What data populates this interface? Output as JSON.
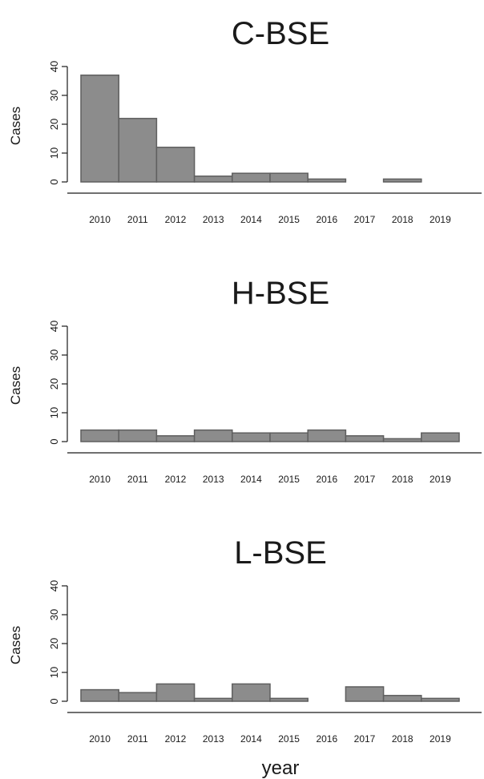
{
  "chart_data": [
    {
      "type": "bar",
      "title": "C-BSE",
      "ylabel": "Cases",
      "xlabel": "",
      "ylim": [
        0,
        40
      ],
      "yticks": [
        0,
        10,
        20,
        30,
        40
      ],
      "categories": [
        "2010",
        "2011",
        "2012",
        "2013",
        "2014",
        "2015",
        "2016",
        "2017",
        "2018",
        "2019"
      ],
      "values": [
        37,
        22,
        12,
        2,
        3,
        3,
        1,
        0,
        1,
        0
      ],
      "bar_color": "#8c8c8c"
    },
    {
      "type": "bar",
      "title": "H-BSE",
      "ylabel": "Cases",
      "xlabel": "",
      "ylim": [
        0,
        40
      ],
      "yticks": [
        0,
        10,
        20,
        30,
        40
      ],
      "categories": [
        "2010",
        "2011",
        "2012",
        "2013",
        "2014",
        "2015",
        "2016",
        "2017",
        "2018",
        "2019"
      ],
      "values": [
        4,
        4,
        2,
        4,
        3,
        3,
        4,
        2,
        1,
        3
      ],
      "bar_color": "#8c8c8c"
    },
    {
      "type": "bar",
      "title": "L-BSE",
      "ylabel": "Cases",
      "xlabel": "year",
      "ylim": [
        0,
        40
      ],
      "yticks": [
        0,
        10,
        20,
        30,
        40
      ],
      "categories": [
        "2010",
        "2011",
        "2012",
        "2013",
        "2014",
        "2015",
        "2016",
        "2017",
        "2018",
        "2019"
      ],
      "values": [
        4,
        3,
        6,
        1,
        6,
        1,
        0,
        5,
        2,
        1
      ],
      "bar_color": "#8c8c8c"
    }
  ]
}
